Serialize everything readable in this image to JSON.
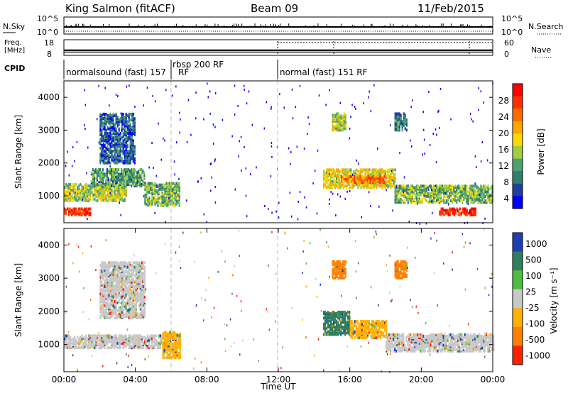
{
  "header": {
    "station": "King Salmon (fitACF)",
    "beam": "Beam 09",
    "date": "11/Feb/2015"
  },
  "top_panels": {
    "nsky_label": "N.Sky",
    "nsky_ticks": [
      "10^5",
      "10^0"
    ],
    "nsearch_label": "N.Search",
    "freq_label_line1": "Freq.",
    "freq_label_line2": "[MHz]",
    "freq_ticks": [
      "18",
      "8"
    ],
    "nave_ticks": [
      "60",
      "0"
    ],
    "nave_label": "Nave",
    "cpid_label": "CPID",
    "cpid_segments": [
      {
        "label": "normalsound (fast) 157",
        "start_hour": 0.0
      },
      {
        "label": "rbsp 200 RF",
        "start_hour": 6.0
      },
      {
        "label": "RF",
        "start_hour": 6.0
      },
      {
        "label": "normal (fast) 151 RF",
        "start_hour": 12.0
      }
    ]
  },
  "colors": {
    "power_scale": [
      "#0000ff",
      "#1f3f9f",
      "#2f7f6f",
      "#4fa070",
      "#9fcf3f",
      "#ffd700",
      "#ffa500",
      "#ff6a00",
      "#ff3000",
      "#ff0000"
    ],
    "velocity_scale": [
      "#1e3fb4",
      "#2e7f5e",
      "#4cbf3c",
      "#c8c8c8",
      "#ffb000",
      "#ff7f00",
      "#ff2000"
    ]
  },
  "chart_data": [
    {
      "type": "heatmap",
      "panel": "power",
      "ylabel": "Slant Range [km]",
      "ylim": [
        180,
        4500
      ],
      "xlim_hours": [
        0,
        24
      ],
      "yticks": [
        1000,
        2000,
        3000,
        4000
      ],
      "colorbar_label": "Power [dB]",
      "colorbar_ticks": [
        "28",
        "24",
        "20",
        "16",
        "12",
        "8",
        "4"
      ],
      "colorbar_range": [
        0,
        30
      ],
      "regions": [
        {
          "t0": 0.0,
          "t1": 3.5,
          "r0": 850,
          "r1": 1350,
          "level": 14
        },
        {
          "t0": 1.5,
          "t1": 4.5,
          "r0": 1300,
          "r1": 1800,
          "level": 10
        },
        {
          "t0": 2.0,
          "t1": 4.0,
          "r0": 2000,
          "r1": 3500,
          "level": 6
        },
        {
          "t0": 4.5,
          "t1": 6.5,
          "r0": 700,
          "r1": 1400,
          "level": 12
        },
        {
          "t0": 0.0,
          "t1": 1.5,
          "r0": 420,
          "r1": 620,
          "level": 26
        },
        {
          "t0": 14.5,
          "t1": 18.5,
          "r0": 1250,
          "r1": 1800,
          "level": 16
        },
        {
          "t0": 15.5,
          "t1": 18.0,
          "r0": 1400,
          "r1": 1600,
          "level": 22
        },
        {
          "t0": 18.5,
          "t1": 24.0,
          "r0": 800,
          "r1": 1300,
          "level": 12
        },
        {
          "t0": 21.0,
          "t1": 23.0,
          "r0": 420,
          "r1": 640,
          "level": 27
        },
        {
          "t0": 15.0,
          "t1": 15.8,
          "r0": 3000,
          "r1": 3500,
          "level": 14
        },
        {
          "t0": 18.5,
          "t1": 19.2,
          "r0": 3000,
          "r1": 3500,
          "level": 8
        }
      ]
    },
    {
      "type": "heatmap",
      "panel": "velocity",
      "ylabel": "Slant Range [km]",
      "ylim": [
        180,
        4500
      ],
      "xlim_hours": [
        0,
        24
      ],
      "yticks": [
        1000,
        2000,
        3000,
        4000
      ],
      "xticks": [
        "00:00",
        "04:00",
        "08:00",
        "12:00",
        "16:00",
        "20:00",
        "00:00"
      ],
      "xlabel": "Time UT",
      "colorbar_label": "Velocity [m s⁻¹]",
      "colorbar_ticks": [
        "1000",
        "500",
        "100",
        "25",
        "-25",
        "-100",
        "-500",
        "-1000"
      ],
      "regions": [
        {
          "t0": 0.0,
          "t1": 6.0,
          "r0": 900,
          "r1": 1300,
          "level": 3
        },
        {
          "t0": 2.0,
          "t1": 4.5,
          "r0": 1800,
          "r1": 3500,
          "level": 3
        },
        {
          "t0": 5.5,
          "t1": 6.5,
          "r0": 600,
          "r1": 1400,
          "level": 4
        },
        {
          "t0": 14.5,
          "t1": 16.0,
          "r0": 1300,
          "r1": 2000,
          "level": 1
        },
        {
          "t0": 16.0,
          "t1": 18.0,
          "r0": 1200,
          "r1": 1700,
          "level": 4
        },
        {
          "t0": 18.0,
          "t1": 24.0,
          "r0": 800,
          "r1": 1300,
          "level": 3
        },
        {
          "t0": 15.0,
          "t1": 15.8,
          "r0": 3000,
          "r1": 3500,
          "level": 5
        },
        {
          "t0": 18.5,
          "t1": 19.2,
          "r0": 3000,
          "r1": 3500,
          "level": 5
        }
      ]
    }
  ]
}
